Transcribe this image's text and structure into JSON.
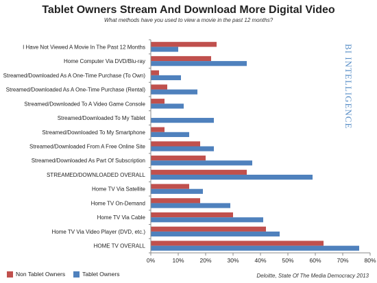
{
  "title": "Tablet Owners Stream And Download More Digital Video",
  "subtitle": "What methods have you used to view a movie in the past 12 months?",
  "source": "Deloitte, State Of The Media Democracy 2013",
  "watermark": "BI INTELLIGENCE",
  "colors": {
    "non_tablet": "#c0504d",
    "tablet": "#4f81bd"
  },
  "chart_data": {
    "type": "bar",
    "orientation": "horizontal",
    "categories": [
      "I Have Not Viewed A Movie In The Past 12 Months",
      "Home Computer Via DVD/Blu-ray",
      "Streamed/Downloaded As A One-Time Purchase (To Own)",
      "Streamed/Downloaded As A One-Time Purchase (Rental)",
      "Streamed/Downloaded To A Video Game Console",
      "Streamed/Downloaded To My Tablet",
      "Streamed/Downloaded To My Smartphone",
      "Streamed/Downloaded From A Free Online Site",
      "Streamed/Downloaded As Part Of Subscription",
      "STREAMED/DOWNLOADED OVERALL",
      "Home TV Via Satellite",
      "Home TV On-Demand",
      "Home TV Via Cable",
      "Home TV Via Video Player (DVD, etc.)",
      "HOME TV OVERALL"
    ],
    "series": [
      {
        "name": "Non Tablet Owners",
        "values": [
          24,
          22,
          3,
          6,
          5,
          0,
          5,
          18,
          20,
          35,
          14,
          18,
          30,
          42,
          63
        ]
      },
      {
        "name": "Tablet Owners",
        "values": [
          10,
          35,
          11,
          17,
          12,
          23,
          14,
          23,
          37,
          59,
          19,
          29,
          41,
          47,
          76
        ]
      }
    ],
    "xlim": [
      0,
      80
    ],
    "xticks": [
      "0%",
      "10%",
      "20%",
      "30%",
      "40%",
      "50%",
      "60%",
      "70%",
      "80%"
    ],
    "legend_position": "bottom-left",
    "grid": false
  }
}
